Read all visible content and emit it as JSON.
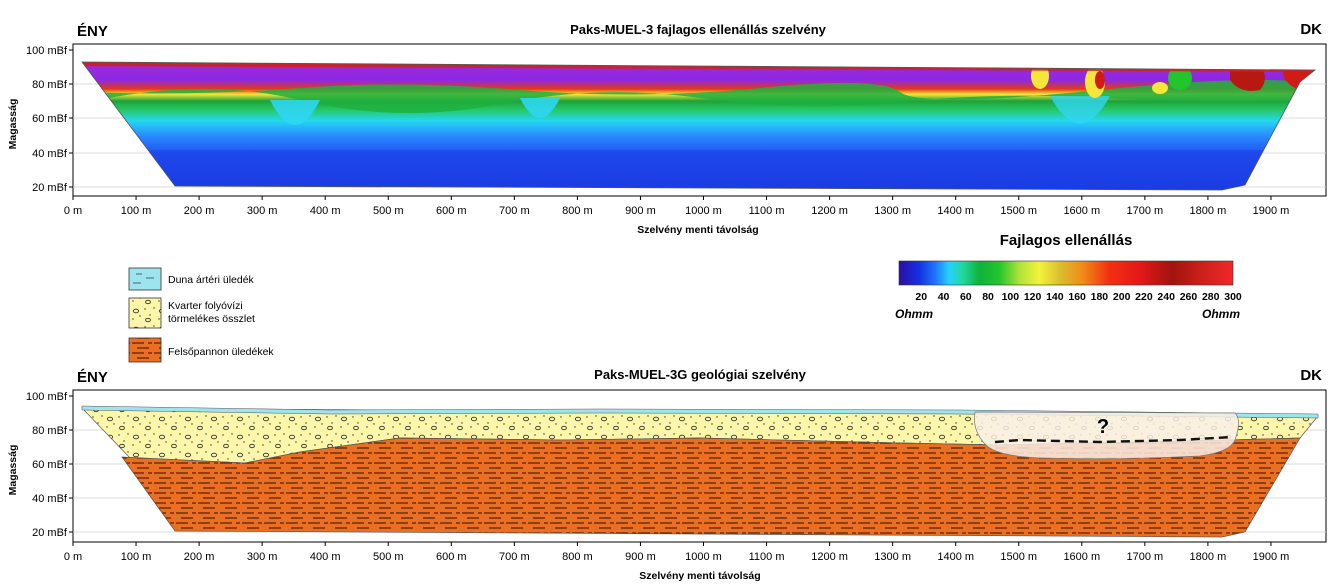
{
  "resistivity_section": {
    "title": "Paks-MUEL-3 fajlagos ellenállás szelvény",
    "left_direction": "ÉNY",
    "right_direction": "DK",
    "y_axis_label": "Magasság",
    "x_axis_label": "Szelvény menti távolság"
  },
  "geology_section": {
    "title": "Paks-MUEL-3G geológiai szelvény",
    "left_direction": "ÉNY",
    "right_direction": "DK",
    "y_axis_label": "Magasság",
    "x_axis_label": "Szelvény menti távolság",
    "question_mark": "?"
  },
  "x_ticks": [
    "0 m",
    "100 m",
    "200 m",
    "300 m",
    "400 m",
    "500 m",
    "600 m",
    "700 m",
    "800 m",
    "900 m",
    "1000 m",
    "1100 m",
    "1200 m",
    "1300 m",
    "1400 m",
    "1500 m",
    "1600 m",
    "1700 m",
    "1800 m",
    "1900 m"
  ],
  "y_ticks": [
    "100 mBf",
    "80 mBf",
    "60 mBf",
    "40 mBf",
    "20 mBf"
  ],
  "legend": {
    "items": [
      {
        "label": "Duna ártéri üledék",
        "color": "#9ee4ee"
      },
      {
        "label_line1": "Kvarter folyóvízi",
        "label_line2": "törmelékes összlet",
        "color": "#fbf6a9"
      },
      {
        "label": "Felsőpannon üledékek",
        "color": "#ea6f22"
      }
    ]
  },
  "colorbar": {
    "title": "Fajlagos ellenállás",
    "ticks": [
      "20",
      "40",
      "60",
      "80",
      "100",
      "120",
      "140",
      "160",
      "180",
      "200",
      "220",
      "240",
      "260",
      "280",
      "300"
    ],
    "unit_left": "Ohmm",
    "unit_right": "Ohmm",
    "range": [
      0,
      300
    ]
  }
}
